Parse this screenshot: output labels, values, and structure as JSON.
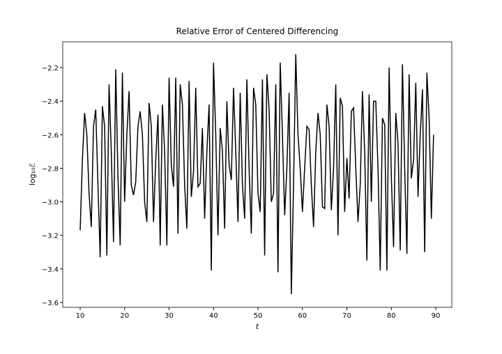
{
  "chart_data": {
    "type": "line",
    "title": "Relative Error of Centered Differencing",
    "x_label": "t",
    "y_label": "log₁₀ℰ",
    "x": [
      10,
      10.5,
      11,
      11.5,
      12,
      12.5,
      13,
      13.5,
      14,
      14.5,
      15,
      15.5,
      16,
      16.5,
      17,
      17.5,
      18,
      18.5,
      19,
      19.5,
      20,
      20.5,
      21,
      21.5,
      22,
      22.5,
      23,
      23.5,
      24,
      24.5,
      25,
      25.5,
      26,
      26.5,
      27,
      27.5,
      28,
      28.5,
      29,
      29.5,
      30,
      30.5,
      31,
      31.5,
      32,
      32.5,
      33,
      33.5,
      34,
      34.5,
      35,
      35.5,
      36,
      36.5,
      37,
      37.5,
      38,
      38.5,
      39,
      39.5,
      40,
      40.5,
      41,
      41.5,
      42,
      42.5,
      43,
      43.5,
      44,
      44.5,
      45,
      45.5,
      46,
      46.5,
      47,
      47.5,
      48,
      48.5,
      49,
      49.5,
      50,
      50.5,
      51,
      51.5,
      52,
      52.5,
      53,
      53.5,
      54,
      54.5,
      55,
      55.5,
      56,
      56.5,
      57,
      57.5,
      58,
      58.5,
      59,
      59.5,
      60,
      60.5,
      61,
      61.5,
      62,
      62.5,
      63,
      63.5,
      64,
      64.5,
      65,
      65.5,
      66,
      66.5,
      67,
      67.5,
      68,
      68.5,
      69,
      69.5,
      70,
      70.5,
      71,
      71.5,
      72,
      72.5,
      73,
      73.5,
      74,
      74.5,
      75,
      75.5,
      76,
      76.5,
      77,
      77.5,
      78,
      78.5,
      79,
      79.5,
      80,
      80.5,
      81,
      81.5,
      82,
      82.5,
      83,
      83.5,
      84,
      84.5,
      85,
      85.5,
      86,
      86.5,
      87,
      87.5,
      88,
      88.5,
      89,
      89.5
    ],
    "series": [
      {
        "color": "#000000",
        "values": [
          -3.17,
          -2.75,
          -2.47,
          -2.6,
          -2.95,
          -3.15,
          -2.55,
          -2.45,
          -2.9,
          -3.33,
          -2.43,
          -2.55,
          -3.32,
          -2.3,
          -2.7,
          -3.24,
          -2.21,
          -2.85,
          -3.26,
          -2.23,
          -3.0,
          -2.6,
          -2.34,
          -2.9,
          -2.96,
          -2.88,
          -2.55,
          -2.46,
          -2.6,
          -3.0,
          -3.12,
          -2.41,
          -2.55,
          -3.12,
          -2.75,
          -2.48,
          -3.26,
          -2.42,
          -2.7,
          -3.26,
          -2.26,
          -2.78,
          -2.91,
          -2.26,
          -3.19,
          -2.3,
          -2.42,
          -2.9,
          -3.16,
          -2.28,
          -2.97,
          -2.82,
          -2.32,
          -2.91,
          -2.89,
          -2.56,
          -3.1,
          -2.7,
          -2.42,
          -3.41,
          -2.17,
          -2.6,
          -3.2,
          -2.56,
          -2.7,
          -3.16,
          -2.4,
          -2.78,
          -2.87,
          -2.32,
          -2.7,
          -3.12,
          -2.35,
          -2.9,
          -3.1,
          -2.27,
          -2.8,
          -3.19,
          -2.32,
          -2.42,
          -2.95,
          -3.06,
          -2.27,
          -3.32,
          -2.24,
          -2.45,
          -3.0,
          -2.95,
          -2.3,
          -3.42,
          -2.17,
          -2.6,
          -3.08,
          -2.8,
          -2.35,
          -3.55,
          -2.9,
          -2.12,
          -2.6,
          -2.8,
          -3.06,
          -2.8,
          -2.55,
          -2.57,
          -2.9,
          -3.15,
          -2.7,
          -2.47,
          -2.6,
          -3.03,
          -3.04,
          -2.42,
          -2.55,
          -3.05,
          -2.8,
          -2.3,
          -3.2,
          -2.38,
          -2.43,
          -3.06,
          -2.74,
          -2.98,
          -2.46,
          -2.44,
          -2.8,
          -3.12,
          -2.9,
          -2.34,
          -2.7,
          -3.35,
          -2.36,
          -3.0,
          -2.4,
          -2.4,
          -2.8,
          -3.41,
          -2.5,
          -2.54,
          -3.41,
          -2.2,
          -2.85,
          -3.27,
          -2.47,
          -2.65,
          -3.29,
          -2.18,
          -2.8,
          -3.31,
          -2.24,
          -2.86,
          -2.75,
          -2.29,
          -2.97,
          -2.6,
          -2.33,
          -3.3,
          -2.23,
          -2.5,
          -3.1,
          -2.6
        ]
      }
    ],
    "xlim": [
      6.08,
      93.6
    ],
    "xticks": [
      10,
      20,
      30,
      40,
      50,
      60,
      70,
      80,
      90
    ],
    "ylim": [
      -3.629,
      -2.046
    ],
    "yticks": [
      {
        "value": -3.6,
        "label": "−3.6"
      },
      {
        "value": -3.4,
        "label": "−3.4"
      },
      {
        "value": -3.2,
        "label": "−3.2"
      },
      {
        "value": -3.0,
        "label": "−3.0"
      },
      {
        "value": -2.8,
        "label": "−2.8"
      },
      {
        "value": -2.6,
        "label": "−2.6"
      },
      {
        "value": -2.4,
        "label": "−2.4"
      },
      {
        "value": -2.2,
        "label": "−2.2"
      }
    ]
  }
}
